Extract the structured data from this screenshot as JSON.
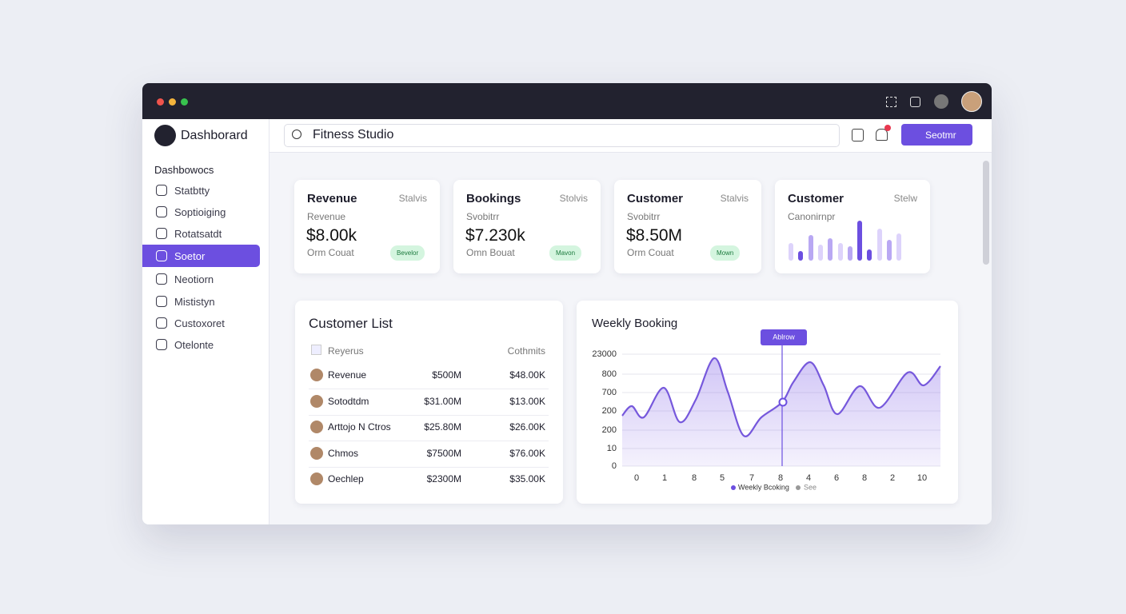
{
  "sidebar": {
    "brand": "Dashborard",
    "section": "Dashbowocs",
    "items": [
      "Statbtty",
      "Soptioiging",
      "Rotatsatdt",
      "Soetor",
      "Neotiorn",
      "Mististyn",
      "Custoxoret",
      "Otelonte"
    ]
  },
  "topbar": {
    "search": "Fitness Studio",
    "button": "Seotmr"
  },
  "stats": [
    {
      "title": "Revenue",
      "tag": "Stalvis",
      "label": "Revenue",
      "value": "$8.00k",
      "sub": "Orm Couat",
      "badge": "Bevelor"
    },
    {
      "title": "Bookings",
      "tag": "Stolvis",
      "label": "Svobitrr",
      "value": "$7.230k",
      "sub": "Omn Bouat",
      "badge": "Mavon"
    },
    {
      "title": "Customer",
      "tag": "Stalvis",
      "label": "Svobitrr",
      "value": "$8.50M",
      "sub": "Orm Couat",
      "badge": "Mown"
    },
    {
      "title": "Customer",
      "tag": "Stelw",
      "label": "Canonirnpr"
    }
  ],
  "customer_list": {
    "title": "Customer List",
    "header": [
      "Reyerus",
      "Cothmits"
    ],
    "rows": [
      [
        "Revenue",
        "$500M",
        "$48.00K"
      ],
      [
        "Sotodtdm",
        "$31.00M",
        "$13.00K"
      ],
      [
        "Arttojo N Ctros",
        "$25.80M",
        "$26.00K"
      ],
      [
        "Chmos",
        "$7500M",
        "$76.00K"
      ],
      [
        "Oechlep",
        "$2300M",
        "$35.00K"
      ]
    ]
  },
  "weekly": {
    "title": "Weekly Booking",
    "tooltip": "Ablrow",
    "yticks": [
      "23000",
      "800",
      "700",
      "200",
      "200",
      "10",
      "0"
    ],
    "xticks": [
      "0",
      "1",
      "8",
      "5",
      "7",
      "8",
      "4",
      "6",
      "8",
      "2",
      "10"
    ],
    "legend": [
      "Weekly Bcoking",
      "See"
    ]
  }
}
